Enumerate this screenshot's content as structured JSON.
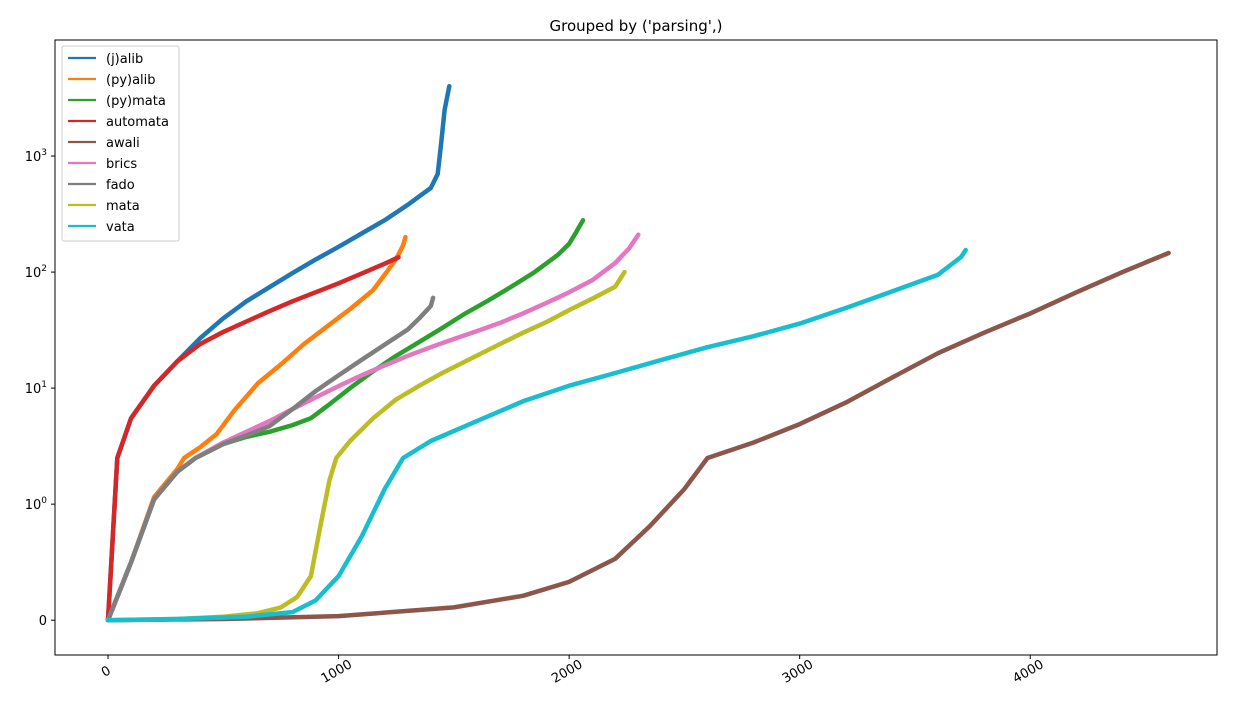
{
  "chart_data": {
    "type": "line",
    "title": "Grouped by ('parsing',)",
    "xlabel": "",
    "ylabel": "",
    "xlim": [
      -230,
      4810
    ],
    "y_scale": "symlog",
    "y_linthresh": 1,
    "ylim": [
      -0.3,
      10000
    ],
    "x_ticks": [
      0,
      1000,
      2000,
      3000,
      4000
    ],
    "x_tick_labels": [
      "0",
      "1000",
      "2000",
      "3000",
      "4000"
    ],
    "y_ticks": [
      0,
      1,
      10,
      100,
      1000
    ],
    "y_tick_labels": [
      {
        "base": "0",
        "exp": ""
      },
      {
        "base": "10",
        "exp": "0"
      },
      {
        "base": "10",
        "exp": "1"
      },
      {
        "base": "10",
        "exp": "2"
      },
      {
        "base": "10",
        "exp": "3"
      }
    ],
    "grid": false,
    "legend_position": "top-left",
    "series": [
      {
        "name": "(j)alib",
        "color": "#1f77b4",
        "points": [
          [
            0,
            0
          ],
          [
            40,
            2.5
          ],
          [
            100,
            5.5
          ],
          [
            200,
            10.5
          ],
          [
            300,
            17
          ],
          [
            400,
            27
          ],
          [
            500,
            40
          ],
          [
            600,
            56
          ],
          [
            700,
            74
          ],
          [
            800,
            98
          ],
          [
            900,
            128
          ],
          [
            1000,
            165
          ],
          [
            1100,
            215
          ],
          [
            1200,
            280
          ],
          [
            1300,
            380
          ],
          [
            1350,
            450
          ],
          [
            1400,
            530
          ],
          [
            1430,
            700
          ],
          [
            1445,
            1300
          ],
          [
            1460,
            2500
          ],
          [
            1480,
            4000
          ]
        ]
      },
      {
        "name": "(py)alib",
        "color": "#ff7f0e",
        "points": [
          [
            0,
            0
          ],
          [
            100,
            0.5
          ],
          [
            200,
            1.15
          ],
          [
            300,
            2
          ],
          [
            330,
            2.5
          ],
          [
            400,
            3.1
          ],
          [
            470,
            4
          ],
          [
            550,
            6.5
          ],
          [
            650,
            11
          ],
          [
            750,
            16
          ],
          [
            850,
            24
          ],
          [
            950,
            34
          ],
          [
            1050,
            48
          ],
          [
            1150,
            70
          ],
          [
            1200,
            95
          ],
          [
            1250,
            130
          ],
          [
            1280,
            170
          ],
          [
            1290,
            200
          ]
        ]
      },
      {
        "name": "(py)mata",
        "color": "#2ca02c",
        "points": [
          [
            0,
            0
          ],
          [
            100,
            0.5
          ],
          [
            200,
            1.1
          ],
          [
            300,
            1.9
          ],
          [
            380,
            2.5
          ],
          [
            500,
            3.3
          ],
          [
            600,
            3.8
          ],
          [
            700,
            4.2
          ],
          [
            800,
            4.8
          ],
          [
            880,
            5.5
          ],
          [
            950,
            7
          ],
          [
            1050,
            10
          ],
          [
            1150,
            14
          ],
          [
            1250,
            19
          ],
          [
            1350,
            25
          ],
          [
            1450,
            33
          ],
          [
            1550,
            44
          ],
          [
            1650,
            57
          ],
          [
            1750,
            75
          ],
          [
            1850,
            100
          ],
          [
            1950,
            140
          ],
          [
            2000,
            175
          ],
          [
            2030,
            220
          ],
          [
            2060,
            280
          ]
        ]
      },
      {
        "name": "automata",
        "color": "#d62728",
        "points": [
          [
            0,
            0
          ],
          [
            40,
            2.5
          ],
          [
            100,
            5.5
          ],
          [
            200,
            10.5
          ],
          [
            300,
            17
          ],
          [
            400,
            24
          ],
          [
            500,
            30.5
          ],
          [
            600,
            37.5
          ],
          [
            700,
            46
          ],
          [
            800,
            56
          ],
          [
            900,
            67
          ],
          [
            1000,
            80
          ],
          [
            1100,
            97
          ],
          [
            1200,
            118
          ],
          [
            1260,
            134
          ]
        ]
      },
      {
        "name": "awali",
        "color": "#8c564b",
        "points": [
          [
            0,
            0
          ],
          [
            500,
            0.01
          ],
          [
            1000,
            0.035
          ],
          [
            1500,
            0.11
          ],
          [
            1800,
            0.21
          ],
          [
            2000,
            0.33
          ],
          [
            2200,
            0.53
          ],
          [
            2350,
            0.81
          ],
          [
            2500,
            1.35
          ],
          [
            2600,
            2.5
          ],
          [
            2800,
            3.4
          ],
          [
            3000,
            4.9
          ],
          [
            3200,
            7.5
          ],
          [
            3400,
            12.3
          ],
          [
            3600,
            20
          ],
          [
            3800,
            30
          ],
          [
            4000,
            44
          ],
          [
            4200,
            67
          ],
          [
            4400,
            100
          ],
          [
            4500,
            121
          ],
          [
            4600,
            146
          ]
        ]
      },
      {
        "name": "brics",
        "color": "#e377c2",
        "points": [
          [
            0,
            0
          ],
          [
            100,
            0.5
          ],
          [
            200,
            1.1
          ],
          [
            300,
            1.9
          ],
          [
            380,
            2.5
          ],
          [
            500,
            3.4
          ],
          [
            600,
            4.2
          ],
          [
            700,
            5.2
          ],
          [
            800,
            6.6
          ],
          [
            900,
            8.3
          ],
          [
            1000,
            10.4
          ],
          [
            1100,
            12.9
          ],
          [
            1200,
            15.7
          ],
          [
            1300,
            19
          ],
          [
            1400,
            22.5
          ],
          [
            1500,
            26.5
          ],
          [
            1600,
            31
          ],
          [
            1700,
            36.5
          ],
          [
            1800,
            44
          ],
          [
            1900,
            54
          ],
          [
            2000,
            67
          ],
          [
            2100,
            85
          ],
          [
            2200,
            120
          ],
          [
            2260,
            160
          ],
          [
            2300,
            210
          ]
        ]
      },
      {
        "name": "fado",
        "color": "#7f7f7f",
        "points": [
          [
            0,
            0
          ],
          [
            100,
            0.5
          ],
          [
            200,
            1.1
          ],
          [
            300,
            1.9
          ],
          [
            380,
            2.5
          ],
          [
            500,
            3.3
          ],
          [
            600,
            3.9
          ],
          [
            700,
            4.7
          ],
          [
            800,
            6.6
          ],
          [
            900,
            9.4
          ],
          [
            1000,
            12.9
          ],
          [
            1100,
            17.5
          ],
          [
            1200,
            23.7
          ],
          [
            1300,
            32
          ],
          [
            1350,
            40
          ],
          [
            1400,
            51
          ],
          [
            1410,
            60
          ]
        ]
      },
      {
        "name": "mata",
        "color": "#bcbd22",
        "points": [
          [
            0,
            0
          ],
          [
            300,
            0.01
          ],
          [
            500,
            0.03
          ],
          [
            650,
            0.06
          ],
          [
            750,
            0.11
          ],
          [
            820,
            0.2
          ],
          [
            880,
            0.38
          ],
          [
            920,
            0.8
          ],
          [
            960,
            1.6
          ],
          [
            990,
            2.5
          ],
          [
            1050,
            3.5
          ],
          [
            1150,
            5.5
          ],
          [
            1250,
            8
          ],
          [
            1350,
            10.5
          ],
          [
            1450,
            13.5
          ],
          [
            1550,
            17
          ],
          [
            1700,
            24
          ],
          [
            1800,
            30
          ],
          [
            1900,
            37
          ],
          [
            2000,
            47
          ],
          [
            2100,
            59
          ],
          [
            2200,
            75
          ],
          [
            2240,
            100
          ]
        ]
      },
      {
        "name": "vata",
        "color": "#17becf",
        "points": [
          [
            0,
            0
          ],
          [
            300,
            0.01
          ],
          [
            600,
            0.03
          ],
          [
            800,
            0.07
          ],
          [
            900,
            0.17
          ],
          [
            1000,
            0.38
          ],
          [
            1100,
            0.72
          ],
          [
            1200,
            1.35
          ],
          [
            1280,
            2.5
          ],
          [
            1400,
            3.5
          ],
          [
            1600,
            5.2
          ],
          [
            1800,
            7.7
          ],
          [
            2000,
            10.5
          ],
          [
            2200,
            13.5
          ],
          [
            2400,
            17.5
          ],
          [
            2600,
            22.5
          ],
          [
            2800,
            28
          ],
          [
            3000,
            36
          ],
          [
            3200,
            49
          ],
          [
            3400,
            68
          ],
          [
            3600,
            95
          ],
          [
            3700,
            135
          ],
          [
            3720,
            155
          ]
        ]
      }
    ]
  }
}
